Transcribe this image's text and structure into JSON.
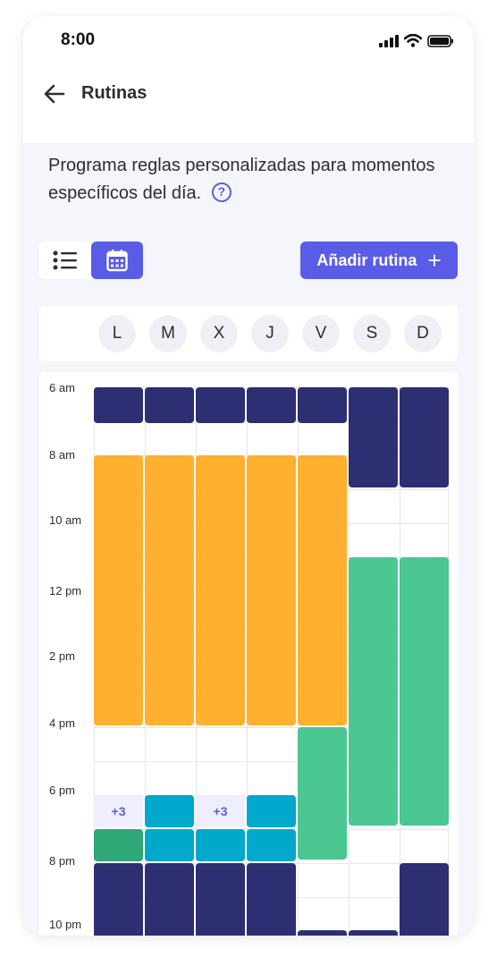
{
  "status_bar": {
    "time": "8:00"
  },
  "header": {
    "title": "Rutinas"
  },
  "description": "Programa reglas personalizadas para momentos específicos del día.",
  "add_button_label": "Añadir rutina",
  "colors": {
    "accent": "#5b5ce6",
    "navy": "#2e2e72",
    "orange": "#ffb02e",
    "green": "#4ac792",
    "dark_green": "#2fa776",
    "teal": "#00a8cc"
  },
  "days": [
    "L",
    "M",
    "X",
    "J",
    "V",
    "S",
    "D"
  ],
  "hours": [
    "6 am",
    "8 am",
    "10 am",
    "12 pm",
    "2 pm",
    "4 pm",
    "6 pm",
    "8 pm",
    "10 pm"
  ],
  "more_chips": [
    {
      "label": "+3"
    },
    {
      "label": "+3"
    }
  ]
}
